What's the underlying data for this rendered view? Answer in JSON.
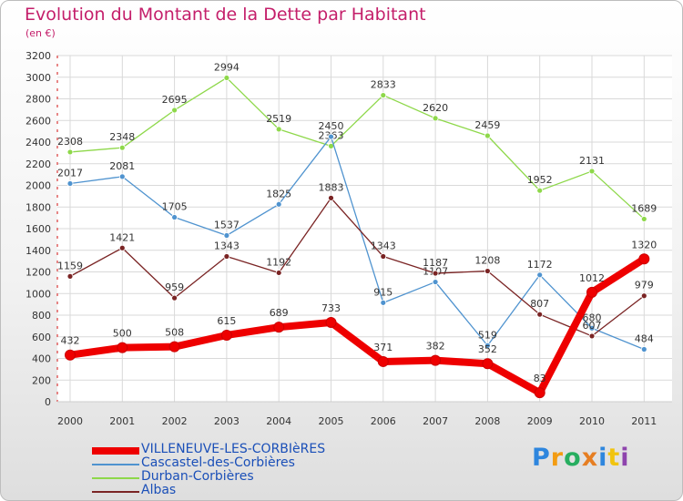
{
  "chart_data": {
    "type": "line",
    "title": "Evolution du Montant de la Dette par Habitant",
    "subtitle": "(en €)",
    "categories": [
      "2000",
      "2001",
      "2002",
      "2003",
      "2004",
      "2005",
      "2006",
      "2007",
      "2008",
      "2009",
      "2010",
      "2011"
    ],
    "ylim": [
      0,
      3200
    ],
    "yticks": [
      "0",
      "200",
      "400",
      "600",
      "800",
      "1000",
      "1200",
      "1400",
      "1600",
      "1800",
      "2000",
      "2200",
      "2400",
      "2600",
      "2800",
      "3000",
      "3200"
    ],
    "grid": true,
    "legend_position": "bottom-left",
    "series": [
      {
        "name": "Durban-Corbières",
        "color": "#8ed84a",
        "values": [
          2308,
          2348,
          2695,
          2994,
          2519,
          2363,
          2833,
          2620,
          2459,
          1952,
          2131,
          1689
        ]
      },
      {
        "name": "Cascastel-des-Corbières",
        "color": "#4f93cf",
        "values": [
          2017,
          2081,
          1705,
          1537,
          1825,
          2450,
          915,
          1107,
          519,
          1172,
          680,
          484
        ]
      },
      {
        "name": "Albas",
        "color": "#7a2424",
        "values": [
          1159,
          1421,
          959,
          1343,
          1192,
          1883,
          1343,
          1187,
          1208,
          807,
          607,
          979
        ]
      },
      {
        "name": "VILLENEUVE-LES-CORBIèRES",
        "color": "#ee0000",
        "values": [
          432,
          500,
          508,
          615,
          689,
          733,
          371,
          382,
          352,
          83,
          1012,
          1320
        ]
      }
    ]
  },
  "legend": {
    "items": [
      {
        "label": "VILLENEUVE-LES-CORBIèRES",
        "color": "#ee0000"
      },
      {
        "label": "Cascastel-des-Corbières",
        "color": "#4f93cf"
      },
      {
        "label": "Durban-Corbières",
        "color": "#8ed84a"
      },
      {
        "label": "Albas",
        "color": "#7a2424"
      }
    ]
  },
  "logo": {
    "letters": [
      "P",
      "r",
      "o",
      "x",
      "i",
      "t",
      "i"
    ],
    "colors": [
      "#2e86de",
      "#f39c12",
      "#27ae60",
      "#e67e22",
      "#2e86de",
      "#f1c40f",
      "#8e44ad"
    ]
  }
}
